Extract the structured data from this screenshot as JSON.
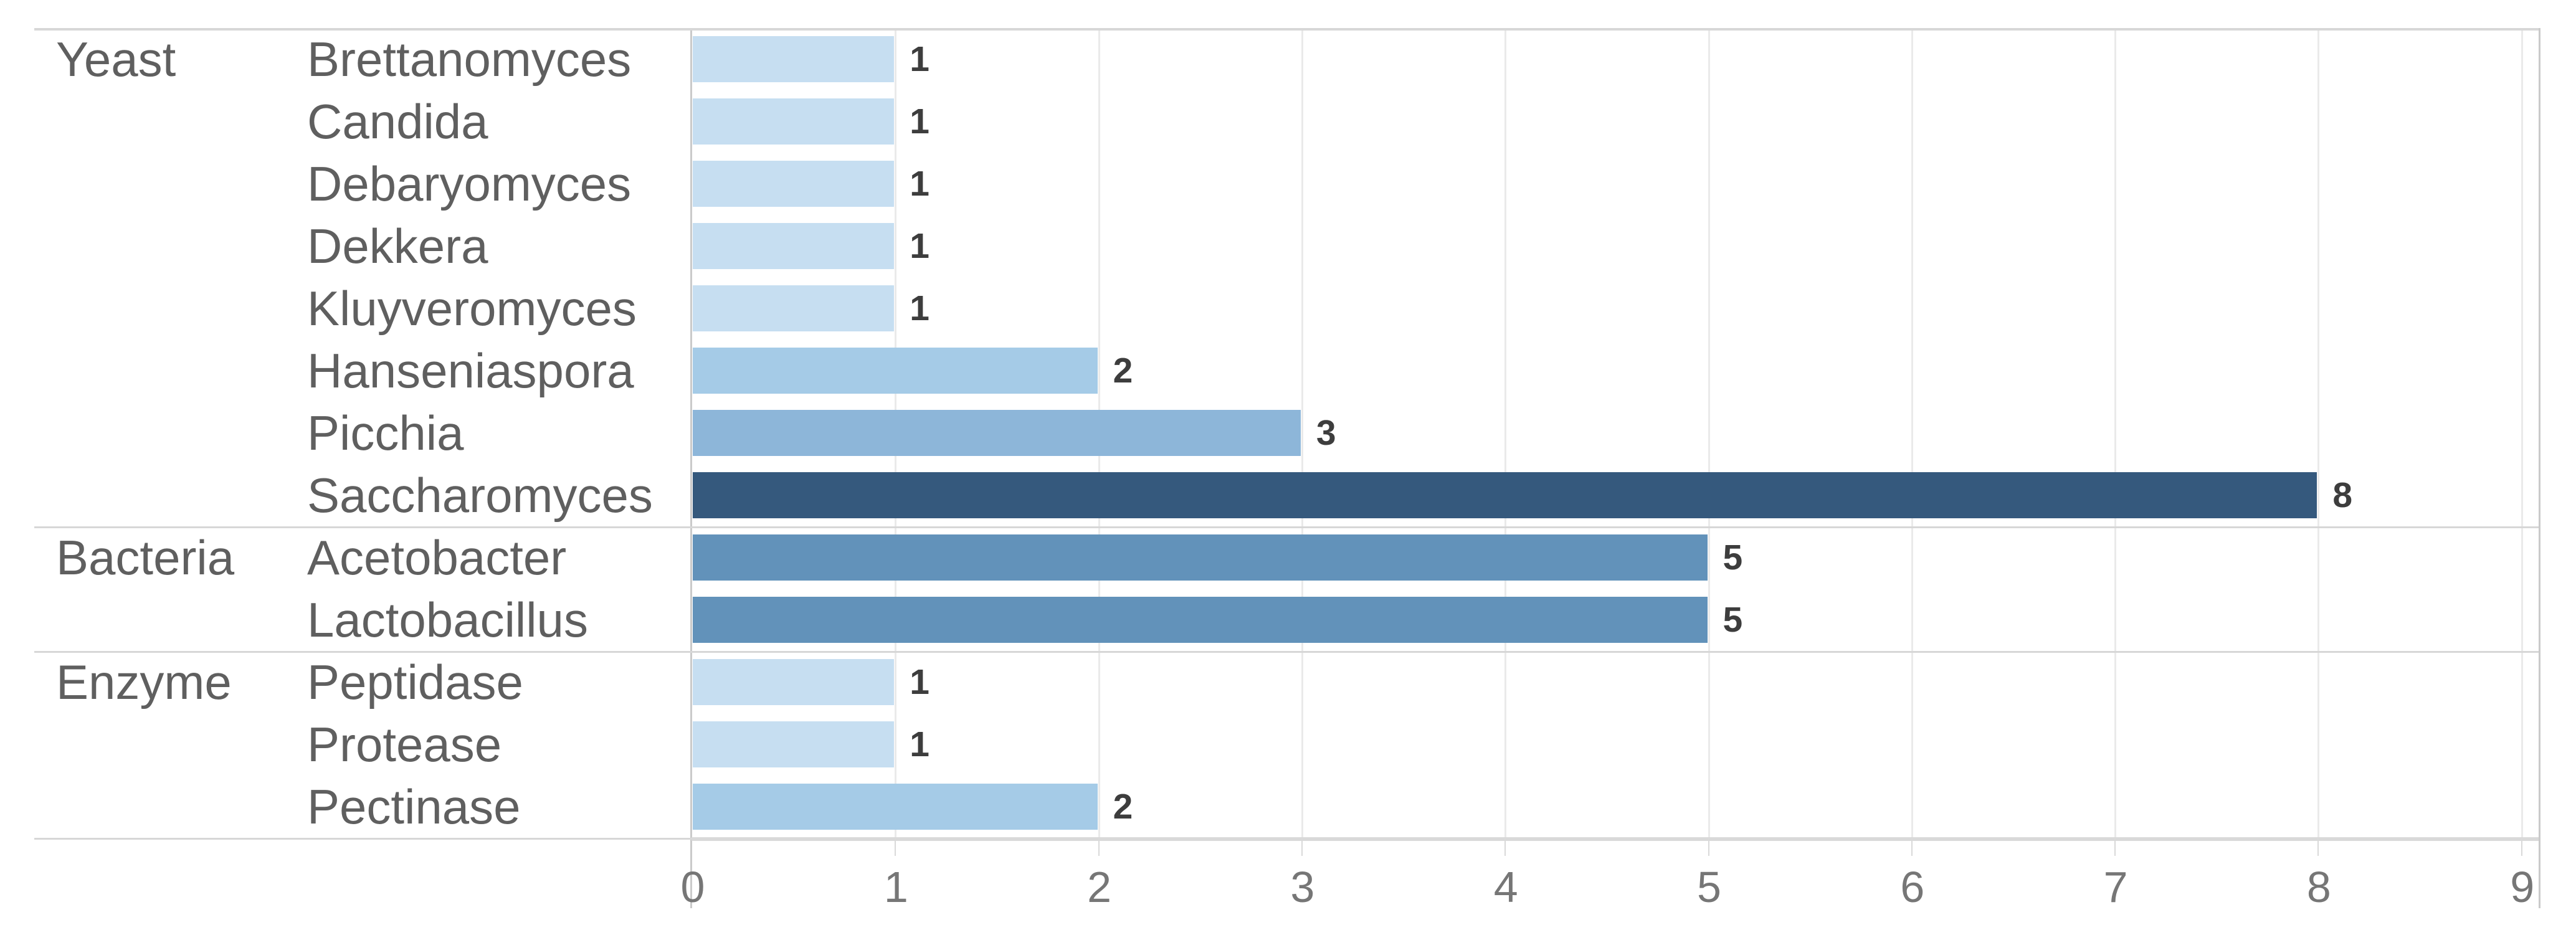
{
  "chart_data": {
    "type": "bar",
    "orientation": "horizontal",
    "title": "",
    "xlabel": "",
    "ylabel": "",
    "xlim": [
      0,
      9
    ],
    "x_ticks": [
      "0",
      "1",
      "2",
      "3",
      "4",
      "5",
      "6",
      "7",
      "8",
      "9"
    ],
    "grid": true,
    "legend": "none",
    "row_header_levels": [
      "category",
      "genus"
    ],
    "groups": [
      {
        "category": "Yeast",
        "items": [
          {
            "label": "Brettanomyces",
            "value": 1
          },
          {
            "label": "Candida",
            "value": 1
          },
          {
            "label": "Debaryomyces",
            "value": 1
          },
          {
            "label": "Dekkera",
            "value": 1
          },
          {
            "label": "Kluyveromyces",
            "value": 1
          },
          {
            "label": "Hanseniaspora",
            "value": 2
          },
          {
            "label": "Picchia",
            "value": 3
          },
          {
            "label": "Saccharomyces",
            "value": 8
          }
        ]
      },
      {
        "category": "Bacteria",
        "items": [
          {
            "label": "Acetobacter",
            "value": 5
          },
          {
            "label": "Lactobacillus",
            "value": 5
          }
        ]
      },
      {
        "category": "Enzyme",
        "items": [
          {
            "label": "Peptidase",
            "value": 1
          },
          {
            "label": "Protease",
            "value": 1
          },
          {
            "label": "Pectinase",
            "value": 2
          }
        ]
      }
    ],
    "palette_by_value": {
      "1": "#c6def1",
      "2": "#a5cbe7",
      "3": "#8db6d9",
      "5": "#6292ba",
      "8": "#35597d"
    }
  },
  "colors": {
    "background": "#ffffff",
    "grid_line": "#eaeaea",
    "frame_line": "#d7d7d7",
    "zero_line": "#cacaca",
    "tick_mark": "#d9d9d9",
    "label_text": "#5f5f5f",
    "tick_text": "#767676",
    "value_text": "#3d3d3d"
  }
}
